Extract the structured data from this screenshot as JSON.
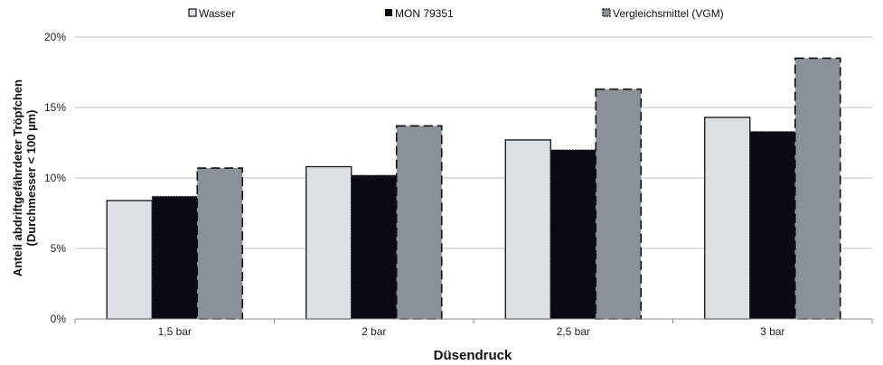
{
  "chart_data": {
    "type": "bar",
    "title": "",
    "xlabel": "Düsendruck",
    "ylabel_lines": [
      "Anteil abdriftgefährdeter Tröpfchen",
      "(Durchmesser < 100 µm)"
    ],
    "categories": [
      "1,5 bar",
      "2 bar",
      "2,5 bar",
      "3 bar"
    ],
    "series": [
      {
        "name": "Wasser",
        "values": [
          8.4,
          10.8,
          12.7,
          14.3
        ],
        "color": "#dde1e6",
        "border": "solid"
      },
      {
        "name": "MON 79351",
        "values": [
          8.7,
          10.2,
          12.0,
          13.3
        ],
        "color": "#0a0a14",
        "border": "dotted"
      },
      {
        "name": "Vergleichsmittel (VGM)",
        "values": [
          10.7,
          13.7,
          16.3,
          18.5
        ],
        "color": "#8a9199",
        "border": "dashed"
      }
    ],
    "ylim": [
      0,
      20
    ],
    "yticks": [
      0,
      5,
      10,
      15,
      20
    ],
    "ytick_labels": [
      "0%",
      "5%",
      "10%",
      "15%",
      "20%"
    ],
    "grid": true,
    "legend_position": "top"
  }
}
